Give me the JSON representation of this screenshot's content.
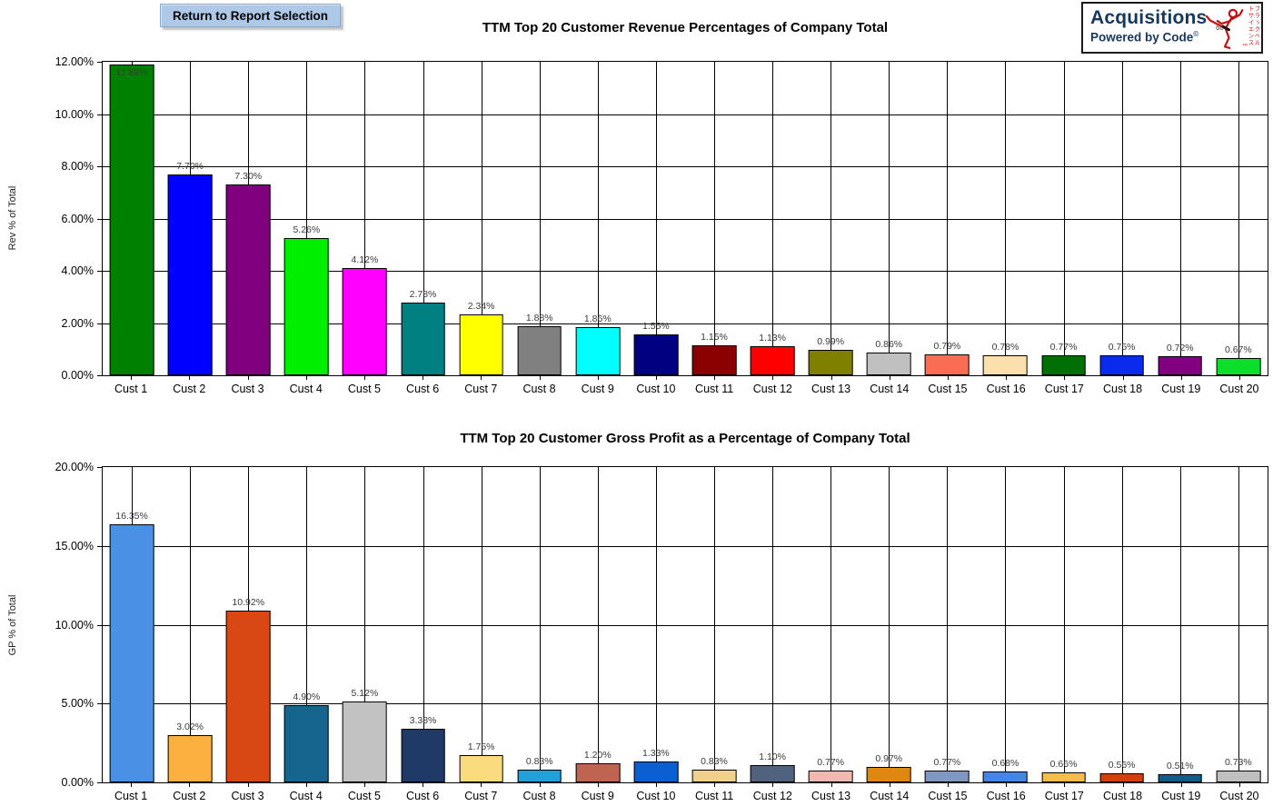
{
  "header": {
    "return_button_label": "Return to Report Selection",
    "logo": {
      "line1": "Acquisitions",
      "line2": "Powered by Code",
      "copyright": "©",
      "sigma_mark": "6σ",
      "vertical_text": "ブラックベルトサイエンス",
      "tm": "™",
      "brand_color": "#17375E",
      "accent_color": "#C41212"
    }
  },
  "chart_data": [
    {
      "type": "bar",
      "title": "TTM Top 20 Customer Revenue Percentages of Company Total",
      "xlabel": "",
      "ylabel": "Rev % of Total",
      "ylim": [
        0,
        12
      ],
      "ytick_step": 2,
      "ytick_labels": [
        "12.00%",
        "10.00%",
        "8.00%",
        "6.00%",
        "4.00%",
        "2.00%",
        "0.00%"
      ],
      "grid": "on",
      "legend": "none",
      "categories": [
        "Cust 1",
        "Cust 2",
        "Cust 3",
        "Cust 4",
        "Cust 5",
        "Cust 6",
        "Cust 7",
        "Cust 8",
        "Cust 9",
        "Cust 10",
        "Cust 11",
        "Cust 12",
        "Cust 13",
        "Cust 14",
        "Cust 15",
        "Cust 16",
        "Cust 17",
        "Cust 18",
        "Cust 19",
        "Cust 20"
      ],
      "values": [
        11.89,
        7.7,
        7.3,
        5.26,
        4.12,
        2.78,
        2.34,
        1.88,
        1.86,
        1.55,
        1.15,
        1.13,
        0.99,
        0.86,
        0.79,
        0.78,
        0.77,
        0.75,
        0.72,
        0.67
      ],
      "labels": [
        "11.89%",
        "7.70%",
        "7.30%",
        "5.26%",
        "4.12%",
        "2.78%",
        "2.34%",
        "1.88%",
        "1.86%",
        "1.55%",
        "1.15%",
        "1.13%",
        "0.99%",
        "0.86%",
        "0.79%",
        "0.78%",
        "0.77%",
        "0.75%",
        "0.72%",
        "0.67%"
      ],
      "colors": [
        "#008000",
        "#0000FF",
        "#800080",
        "#00EE00",
        "#FF00FF",
        "#008080",
        "#FFFF00",
        "#808080",
        "#00FFFF",
        "#000080",
        "#8B0000",
        "#FF0000",
        "#808000",
        "#C0C0C0",
        "#FB6C55",
        "#FBDFAD",
        "#007006",
        "#0A2AEE",
        "#800080",
        "#0BDE2B"
      ]
    },
    {
      "type": "bar",
      "title": "TTM Top 20 Customer Gross Profit as a Percentage of Company Total",
      "xlabel": "",
      "ylabel": "GP % of Total",
      "ylim": [
        0,
        20
      ],
      "ytick_step": 5,
      "ytick_labels": [
        "20.00%",
        "15.00%",
        "10.00%",
        "5.00%",
        "0.00%"
      ],
      "grid": "on",
      "legend": "none",
      "categories": [
        "Cust 1",
        "Cust 2",
        "Cust 3",
        "Cust 4",
        "Cust 5",
        "Cust 6",
        "Cust 7",
        "Cust 8",
        "Cust 9",
        "Cust 10",
        "Cust 11",
        "Cust 12",
        "Cust 13",
        "Cust 14",
        "Cust 15",
        "Cust 16",
        "Cust 17",
        "Cust 18",
        "Cust 19",
        "Cust 20"
      ],
      "values": [
        16.35,
        3.02,
        10.92,
        4.9,
        5.12,
        3.38,
        1.75,
        0.83,
        1.2,
        1.33,
        0.83,
        1.1,
        0.77,
        0.97,
        0.77,
        0.68,
        0.66,
        0.56,
        0.51,
        0.73
      ],
      "labels": [
        "16.35%",
        "3.02%",
        "10.92%",
        "4.90%",
        "5.12%",
        "3.38%",
        "1.75%",
        "0.83%",
        "1.20%",
        "1.33%",
        "0.83%",
        "1.10%",
        "0.77%",
        "0.97%",
        "0.77%",
        "0.68%",
        "0.66%",
        "0.56%",
        "0.51%",
        "0.73%"
      ],
      "colors": [
        "#4A90E4",
        "#FBB040",
        "#D74814",
        "#15658F",
        "#C2C2C2",
        "#1F3A66",
        "#FADC7E",
        "#22A0DA",
        "#BE6450",
        "#0A60D2",
        "#EFD18C",
        "#51627E",
        "#EFB9B0",
        "#DE8812",
        "#8097C2",
        "#4286E8",
        "#F8BC4C",
        "#D2400E",
        "#135C86",
        "#BFBFBF"
      ]
    }
  ]
}
